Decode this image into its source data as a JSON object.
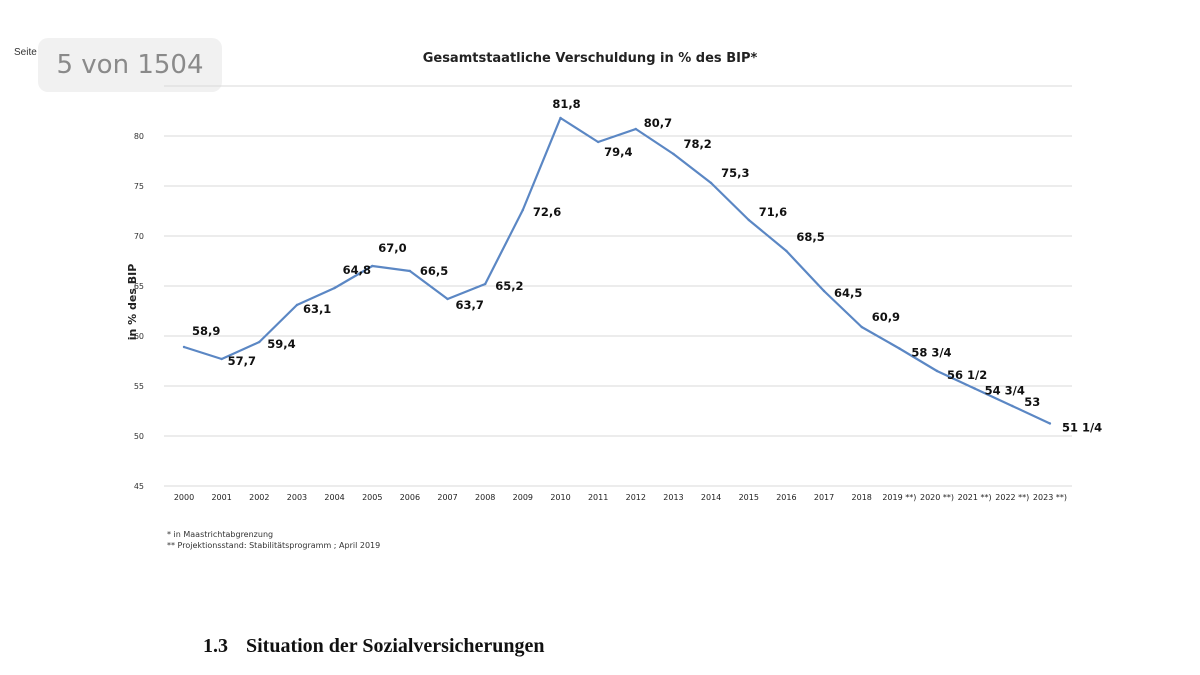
{
  "page": {
    "header_left": "Seite",
    "page_indicator": "5 von 1504"
  },
  "colors": {
    "line": "#5b87c4",
    "grid": "#d9d9d9"
  },
  "chart_data": {
    "type": "line",
    "title": "Gesamtstaatliche Verschuldung in % des BIP*",
    "xlabel": "",
    "ylabel": "in % des BIP",
    "ylim": [
      45,
      85
    ],
    "yticks": [
      45,
      50,
      55,
      60,
      65,
      70,
      75,
      80
    ],
    "categories": [
      "2000",
      "2001",
      "2002",
      "2003",
      "2004",
      "2005",
      "2006",
      "2007",
      "2008",
      "2009",
      "2010",
      "2011",
      "2012",
      "2013",
      "2014",
      "2015",
      "2016",
      "2017",
      "2018",
      "2019 **)",
      "2020 **)",
      "2021 **)",
      "2022 **)",
      "2023 **)"
    ],
    "values": [
      58.9,
      57.7,
      59.4,
      63.1,
      64.8,
      67.0,
      66.5,
      63.7,
      65.2,
      72.6,
      81.8,
      79.4,
      80.7,
      78.2,
      75.3,
      71.6,
      68.5,
      64.5,
      60.9,
      58.75,
      56.5,
      54.75,
      53,
      51.25
    ],
    "data_labels": [
      "58,9",
      "57,7",
      "59,4",
      "63,1",
      "64,8",
      "67,0",
      "66,5",
      "63,7",
      "65,2",
      "72,6",
      "81,8",
      "79,4",
      "80,7",
      "78,2",
      "75,3",
      "71,6",
      "68,5",
      "64,5",
      "60,9",
      "58 3/4",
      "56 1/2",
      "54 3/4",
      "53",
      "51 1/4"
    ],
    "grid": true,
    "footnotes": [
      "* in Maastrichtabgrenzung",
      "** Projektionsstand: Stabilitätsprogramm ; April 2019"
    ]
  },
  "section": {
    "number": "1.3",
    "title": "Situation der Sozialversicherungen"
  }
}
